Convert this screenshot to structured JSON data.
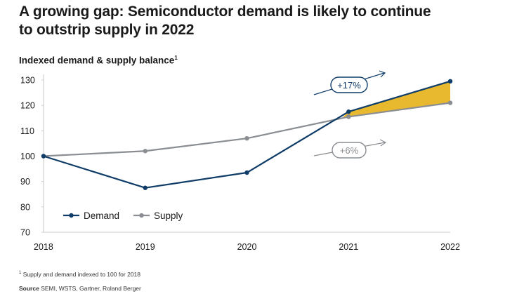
{
  "title_line1": "A growing gap: Semiconductor demand is likely to continue",
  "title_line2": "to outstrip supply in 2022",
  "subtitle": "Indexed demand & supply balance",
  "subtitle_marker": "1",
  "footnote_marker": "1",
  "footnote_text": "Supply and demand indexed to 100 for 2018",
  "source_label": "Source",
  "source_text": "SEMI, WSTS, Gartner, Roland Berger",
  "colors": {
    "demand": "#0f3d68",
    "supply": "#8a8d91",
    "gap_fill": "#e8b92e",
    "axis": "#c8c8c8",
    "text": "#1a1a1a"
  },
  "chart_data": {
    "type": "line",
    "title": "A growing gap: Semiconductor demand is likely to continue to outstrip supply in 2022",
    "ylabel": "Indexed demand & supply balance",
    "xlabel": "",
    "categories": [
      "2018",
      "2019",
      "2020",
      "2021",
      "2022"
    ],
    "ylim": [
      70,
      130
    ],
    "yticks": [
      70,
      80,
      90,
      100,
      110,
      120,
      130
    ],
    "series": [
      {
        "name": "Demand",
        "values": [
          100,
          87.5,
          93.5,
          117.5,
          129.5
        ]
      },
      {
        "name": "Supply",
        "values": [
          100,
          102,
          107,
          115.5,
          121
        ]
      }
    ],
    "annotations": [
      {
        "label": "+17%",
        "series": "Demand"
      },
      {
        "label": "+6%",
        "series": "Supply"
      }
    ],
    "shaded_gap": {
      "from": "2021",
      "to": "2022",
      "between": [
        "Demand",
        "Supply"
      ]
    },
    "legend": {
      "position": "bottom-left",
      "entries": [
        "Demand",
        "Supply"
      ]
    }
  }
}
